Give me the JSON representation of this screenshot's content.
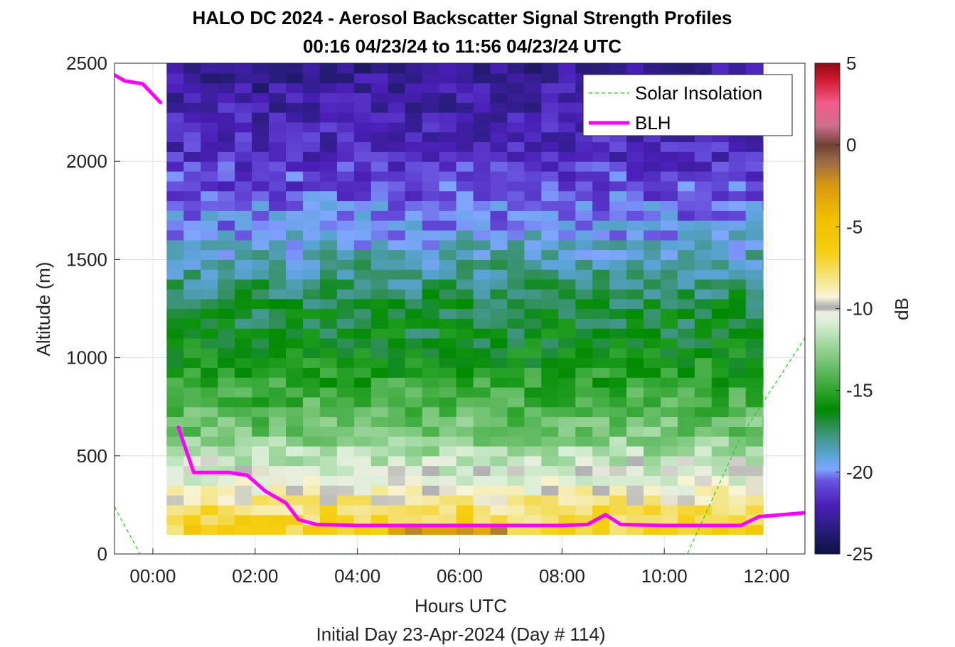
{
  "chart_data": {
    "type": "heatmap",
    "title": "HALO DC 2024 - Aerosol Backscatter Signal Strength Profiles",
    "subtitle": "00:16 04/23/24 to 11:56 04/23/24  UTC",
    "xlabel": "Hours UTC",
    "footer": "Initial Day 23-Apr-2024 (Day # 114)",
    "ylabel": "Altitude (m)",
    "colorbar_label": "dB",
    "xlim": [
      -0.75,
      12.75
    ],
    "ylim": [
      0,
      2500
    ],
    "clim": [
      -25,
      5
    ],
    "x_ticks": [
      0,
      2,
      4,
      6,
      8,
      10,
      12
    ],
    "x_tick_labels": [
      "00:00",
      "02:00",
      "04:00",
      "06:00",
      "08:00",
      "10:00",
      "12:00"
    ],
    "y_ticks": [
      0,
      500,
      1000,
      1500,
      2000,
      2500
    ],
    "y_tick_labels": [
      "0",
      "500",
      "1000",
      "1500",
      "2000",
      "2500"
    ],
    "cbar_ticks": [
      5,
      0,
      -5,
      -10,
      -15,
      -20,
      -25
    ],
    "cbar_tick_labels": [
      "5",
      "0",
      "-5",
      "-10",
      "-15",
      "-20",
      "-25"
    ],
    "grid": true,
    "legend_position": "top-right",
    "heatmap": {
      "time_start": 0.27,
      "time_end": 11.93,
      "time_step": 0.333,
      "alt_start": 100,
      "alt_end": 2500,
      "alt_step": 50,
      "profile_note": "typical dB by altitude band",
      "profile": [
        {
          "alt": 100,
          "db": -6.5
        },
        {
          "alt": 250,
          "db": -8
        },
        {
          "alt": 350,
          "db": -10
        },
        {
          "alt": 450,
          "db": -11
        },
        {
          "alt": 600,
          "db": -13
        },
        {
          "alt": 800,
          "db": -14.5
        },
        {
          "alt": 1100,
          "db": -16.5
        },
        {
          "alt": 1300,
          "db": -17
        },
        {
          "alt": 1500,
          "db": -18.5
        },
        {
          "alt": 1700,
          "db": -20
        },
        {
          "alt": 2000,
          "db": -21.5
        },
        {
          "alt": 2300,
          "db": -22.5
        },
        {
          "alt": 2500,
          "db": -23
        }
      ]
    },
    "series": [
      {
        "name": "Solar Insolation",
        "style": "dashed",
        "color": "#22cc22",
        "x": [
          -0.75,
          -0.25,
          0,
          2,
          4,
          6,
          8,
          10,
          10.45,
          11.5,
          12.75
        ],
        "y": [
          240,
          0,
          0,
          0,
          0,
          0,
          0,
          0,
          0,
          600,
          1100
        ]
      },
      {
        "name": "BLH",
        "style": "solid",
        "color": "#ff00ff",
        "segments": [
          {
            "x": [
              -0.75,
              -0.55,
              -0.2,
              0.15
            ],
            "y": [
              2440,
              2410,
              2395,
              2300
            ]
          },
          {
            "x": [
              0.5,
              0.8,
              1.5,
              1.85,
              2.2,
              2.6,
              2.85,
              3.2,
              4,
              5,
              6,
              7,
              8,
              8.5,
              8.85,
              9.15,
              10,
              11,
              11.5,
              11.85,
              12.75
            ],
            "y": [
              645,
              415,
              415,
              400,
              320,
              260,
              175,
              150,
              145,
              145,
              145,
              145,
              145,
              150,
              200,
              150,
              145,
              145,
              145,
              190,
              210
            ]
          }
        ]
      }
    ]
  }
}
